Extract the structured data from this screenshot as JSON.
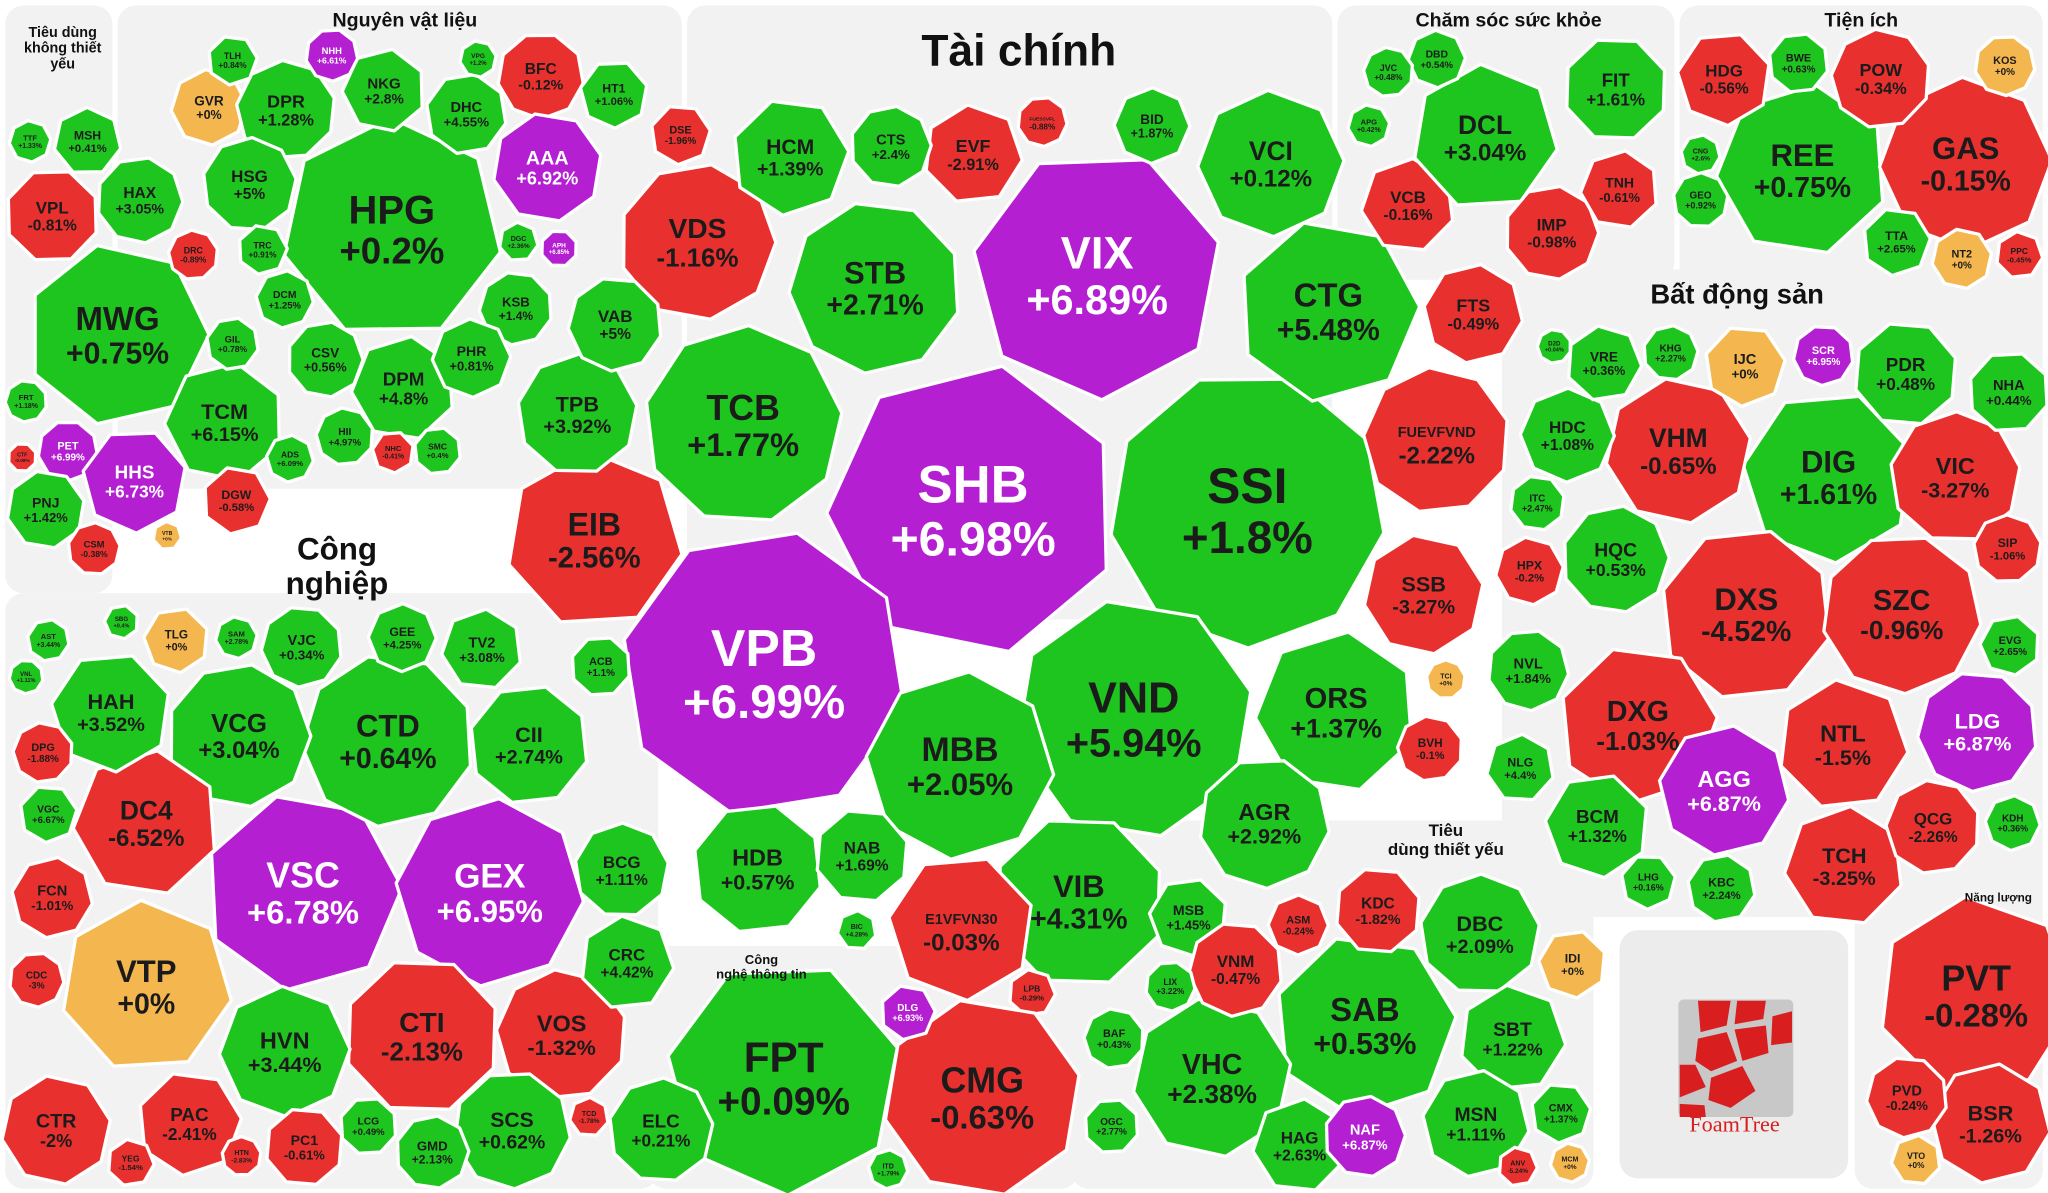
{
  "chart_data": {
    "type": "heatmap",
    "title": "",
    "colors": {
      "up": "#1fc51f",
      "down": "#e8312f",
      "ceiling": "#b41fd1",
      "unchanged": "#f4b74f"
    },
    "groups": [
      {
        "name": "Tiêu dùng không thiết yếu",
        "stocks": [
          {
            "ticker": "MWG",
            "change": "+0.75%"
          },
          {
            "ticker": "VPL",
            "change": "-0.81%"
          },
          {
            "ticker": "HAX",
            "change": "+3.05%"
          },
          {
            "ticker": "MSH",
            "change": "+0.41%"
          },
          {
            "ticker": "TTF",
            "change": "+1.33%"
          },
          {
            "ticker": "DRC",
            "change": "-0.89%"
          },
          {
            "ticker": "TCM",
            "change": "+6.15%"
          },
          {
            "ticker": "GIL",
            "change": "+0.78%"
          },
          {
            "ticker": "PET",
            "change": "+6.99%",
            "ceiling": true
          },
          {
            "ticker": "HHS",
            "change": "+6.73%",
            "ceiling": true
          },
          {
            "ticker": "PNJ",
            "change": "+1.42%"
          },
          {
            "ticker": "CSM",
            "change": "-0.38%"
          },
          {
            "ticker": "DGW",
            "change": "-0.58%"
          },
          {
            "ticker": "ADS",
            "change": "+6.09%"
          },
          {
            "ticker": "FRT",
            "change": "+1.18%"
          },
          {
            "ticker": "VTB",
            "change": "+0%"
          },
          {
            "ticker": "CTF",
            "change": "-0.08%"
          }
        ]
      },
      {
        "name": "Nguyên vật liệu",
        "stocks": [
          {
            "ticker": "HPG",
            "change": "+0.2%"
          },
          {
            "ticker": "GVR",
            "change": "+0%"
          },
          {
            "ticker": "DPR",
            "change": "+1.28%"
          },
          {
            "ticker": "NKG",
            "change": "+2.8%"
          },
          {
            "ticker": "DHC",
            "change": "+4.55%"
          },
          {
            "ticker": "BFC",
            "change": "-0.12%"
          },
          {
            "ticker": "HT1",
            "change": "+1.06%"
          },
          {
            "ticker": "AAA",
            "change": "+6.92%",
            "ceiling": true
          },
          {
            "ticker": "HSG",
            "change": "+5%"
          },
          {
            "ticker": "TRC",
            "change": "+0.91%"
          },
          {
            "ticker": "DCM",
            "change": "+1.25%"
          },
          {
            "ticker": "KSB",
            "change": "+1.4%"
          },
          {
            "ticker": "DGC",
            "change": "+2.36%"
          },
          {
            "ticker": "APH",
            "change": "+6.85%",
            "ceiling": true
          },
          {
            "ticker": "CSV",
            "change": "+0.56%"
          },
          {
            "ticker": "DPM",
            "change": "+4.8%"
          },
          {
            "ticker": "PHR",
            "change": "+0.81%"
          },
          {
            "ticker": "HII",
            "change": "+4.97%"
          },
          {
            "ticker": "NHC",
            "change": "-0.41%"
          },
          {
            "ticker": "SMC",
            "change": "+0.4%"
          },
          {
            "ticker": "NHH",
            "change": "+6.61%",
            "ceiling": true
          },
          {
            "ticker": "TLH",
            "change": "+0.84%"
          },
          {
            "ticker": "VPG",
            "change": "+1.2%"
          }
        ]
      },
      {
        "name": "Tài chính",
        "stocks": [
          {
            "ticker": "SHB",
            "change": "+6.98%",
            "ceiling": true
          },
          {
            "ticker": "VPB",
            "change": "+6.99%",
            "ceiling": true
          },
          {
            "ticker": "SSI",
            "change": "+1.8%"
          },
          {
            "ticker": "VIX",
            "change": "+6.89%",
            "ceiling": true
          },
          {
            "ticker": "VND",
            "change": "+5.94%"
          },
          {
            "ticker": "TCB",
            "change": "+1.77%"
          },
          {
            "ticker": "CTG",
            "change": "+5.48%"
          },
          {
            "ticker": "MBB",
            "change": "+2.05%"
          },
          {
            "ticker": "STB",
            "change": "+2.71%"
          },
          {
            "ticker": "EIB",
            "change": "-2.56%"
          },
          {
            "ticker": "VIB",
            "change": "+4.31%"
          },
          {
            "ticker": "VDS",
            "change": "-1.16%"
          },
          {
            "ticker": "ORS",
            "change": "+1.37%"
          },
          {
            "ticker": "VCI",
            "change": "+0.12%"
          },
          {
            "ticker": "FUEVFVND",
            "change": "-2.22%"
          },
          {
            "ticker": "E1VFVN30",
            "change": "-0.03%"
          },
          {
            "ticker": "HDB",
            "change": "+0.57%"
          },
          {
            "ticker": "AGR",
            "change": "+2.92%"
          },
          {
            "ticker": "HCM",
            "change": "+1.39%"
          },
          {
            "ticker": "SSB",
            "change": "-3.27%"
          },
          {
            "ticker": "TPB",
            "change": "+3.92%"
          },
          {
            "ticker": "EVF",
            "change": "-2.91%"
          },
          {
            "ticker": "FTS",
            "change": "-0.49%"
          },
          {
            "ticker": "VAB",
            "change": "+5%"
          },
          {
            "ticker": "VCB",
            "change": "-0.16%"
          },
          {
            "ticker": "NAB",
            "change": "+1.69%"
          },
          {
            "ticker": "CTS",
            "change": "+2.4%"
          },
          {
            "ticker": "MSB",
            "change": "+1.45%"
          },
          {
            "ticker": "BID",
            "change": "+1.87%"
          },
          {
            "ticker": "BVH",
            "change": "-0.1%"
          },
          {
            "ticker": "DSE",
            "change": "-1.96%"
          },
          {
            "ticker": "ACB",
            "change": "+1.1%"
          },
          {
            "ticker": "FUESSVFL",
            "change": "-0.88%"
          },
          {
            "ticker": "LPB",
            "change": "-0.29%"
          },
          {
            "ticker": "APG",
            "change": "+0.42%"
          },
          {
            "ticker": "TCI",
            "change": "+0%"
          },
          {
            "ticker": "BIC",
            "change": "+4.28%"
          }
        ]
      },
      {
        "name": "Công nghệ thông tin",
        "stocks": [
          {
            "ticker": "FPT",
            "change": "+0.09%"
          },
          {
            "ticker": "CMG",
            "change": "-0.63%"
          },
          {
            "ticker": "ELC",
            "change": "+0.21%"
          },
          {
            "ticker": "DLG",
            "change": "+6.93%",
            "ceiling": true
          },
          {
            "ticker": "ITD",
            "change": "+1.79%"
          }
        ]
      },
      {
        "name": "Công nghiệp",
        "stocks": [
          {
            "ticker": "VSC",
            "change": "+6.78%",
            "ceiling": true
          },
          {
            "ticker": "GEX",
            "change": "+6.95%",
            "ceiling": true
          },
          {
            "ticker": "CTD",
            "change": "+0.64%"
          },
          {
            "ticker": "VTP",
            "change": "+0%"
          },
          {
            "ticker": "CTI",
            "change": "-2.13%"
          },
          {
            "ticker": "VCG",
            "change": "+3.04%"
          },
          {
            "ticker": "DC4",
            "change": "-6.52%"
          },
          {
            "ticker": "HVN",
            "change": "+3.44%"
          },
          {
            "ticker": "VOS",
            "change": "-1.32%"
          },
          {
            "ticker": "HAH",
            "change": "+3.52%"
          },
          {
            "ticker": "CII",
            "change": "+2.74%"
          },
          {
            "ticker": "SCS",
            "change": "+0.62%"
          },
          {
            "ticker": "PAC",
            "change": "-2.41%"
          },
          {
            "ticker": "CTR",
            "change": "-2%"
          },
          {
            "ticker": "BCG",
            "change": "+1.11%"
          },
          {
            "ticker": "CRC",
            "change": "+4.42%"
          },
          {
            "ticker": "FCN",
            "change": "-1.01%"
          },
          {
            "ticker": "VJC",
            "change": "+0.34%"
          },
          {
            "ticker": "TV2",
            "change": "+3.08%"
          },
          {
            "ticker": "PC1",
            "change": "-0.61%"
          },
          {
            "ticker": "GMD",
            "change": "+2.13%"
          },
          {
            "ticker": "TLG",
            "change": "+0%"
          },
          {
            "ticker": "GEE",
            "change": "+4.25%"
          },
          {
            "ticker": "DPG",
            "change": "-1.88%"
          },
          {
            "ticker": "VGC",
            "change": "+6.67%"
          },
          {
            "ticker": "LCG",
            "change": "+0.49%"
          },
          {
            "ticker": "CDC",
            "change": "-3%"
          },
          {
            "ticker": "YEG",
            "change": "-1.54%"
          },
          {
            "ticker": "SAM",
            "change": "+2.78%"
          },
          {
            "ticker": "HTN",
            "change": "-2.83%"
          },
          {
            "ticker": "TCD",
            "change": "-1.78%"
          },
          {
            "ticker": "AST",
            "change": "+3.44%"
          },
          {
            "ticker": "VNL",
            "change": "+1.11%"
          },
          {
            "ticker": "SBG",
            "change": "+0.4%"
          }
        ]
      },
      {
        "name": "Chăm sóc sức khỏe",
        "stocks": [
          {
            "ticker": "DCL",
            "change": "+3.04%"
          },
          {
            "ticker": "FIT",
            "change": "+1.61%"
          },
          {
            "ticker": "IMP",
            "change": "-0.98%"
          },
          {
            "ticker": "TNH",
            "change": "-0.61%"
          },
          {
            "ticker": "DBD",
            "change": "+0.54%"
          },
          {
            "ticker": "JVC",
            "change": "+0.48%"
          }
        ]
      },
      {
        "name": "Tiện ích",
        "stocks": [
          {
            "ticker": "REE",
            "change": "+0.75%"
          },
          {
            "ticker": "GAS",
            "change": "-0.15%"
          },
          {
            "ticker": "POW",
            "change": "-0.34%"
          },
          {
            "ticker": "HDG",
            "change": "-0.56%"
          },
          {
            "ticker": "BWE",
            "change": "+0.63%"
          },
          {
            "ticker": "KOS",
            "change": "+0%"
          },
          {
            "ticker": "TTA",
            "change": "+2.65%"
          },
          {
            "ticker": "NT2",
            "change": "+0%"
          },
          {
            "ticker": "GEO",
            "change": "+0.92%"
          },
          {
            "ticker": "PPC",
            "change": "-0.45%"
          },
          {
            "ticker": "CNG",
            "change": "+2.6%"
          }
        ]
      },
      {
        "name": "Bất động sản",
        "stocks": [
          {
            "ticker": "DIG",
            "change": "+1.61%"
          },
          {
            "ticker": "DXS",
            "change": "-4.52%"
          },
          {
            "ticker": "SZC",
            "change": "-0.96%"
          },
          {
            "ticker": "DXG",
            "change": "-1.03%"
          },
          {
            "ticker": "VHM",
            "change": "-0.65%"
          },
          {
            "ticker": "VIC",
            "change": "-3.27%"
          },
          {
            "ticker": "NTL",
            "change": "-1.5%"
          },
          {
            "ticker": "AGG",
            "change": "+6.87%",
            "ceiling": true
          },
          {
            "ticker": "LDG",
            "change": "+6.87%",
            "ceiling": true
          },
          {
            "ticker": "TCH",
            "change": "-3.25%"
          },
          {
            "ticker": "PDR",
            "change": "+0.48%"
          },
          {
            "ticker": "HQC",
            "change": "+0.53%"
          },
          {
            "ticker": "BCM",
            "change": "+1.32%"
          },
          {
            "ticker": "HDC",
            "change": "+1.08%"
          },
          {
            "ticker": "QCG",
            "change": "-2.26%"
          },
          {
            "ticker": "IJC",
            "change": "+0%"
          },
          {
            "ticker": "NHA",
            "change": "+0.44%"
          },
          {
            "ticker": "NVL",
            "change": "+1.84%"
          },
          {
            "ticker": "VRE",
            "change": "+0.36%"
          },
          {
            "ticker": "HPX",
            "change": "-0.2%"
          },
          {
            "ticker": "SIP",
            "change": "-1.06%"
          },
          {
            "ticker": "NLG",
            "change": "+4.4%"
          },
          {
            "ticker": "KBC",
            "change": "+2.24%"
          },
          {
            "ticker": "SCR",
            "change": "+6.95%",
            "ceiling": true
          },
          {
            "ticker": "EVG",
            "change": "+2.65%"
          },
          {
            "ticker": "ITC",
            "change": "+2.47%"
          },
          {
            "ticker": "KHG",
            "change": "+2.27%"
          },
          {
            "ticker": "LHG",
            "change": "+0.16%"
          },
          {
            "ticker": "KDH",
            "change": "+0.36%"
          },
          {
            "ticker": "D2D",
            "change": "+0.04%"
          }
        ]
      },
      {
        "name": "Tiêu dùng thiết yếu",
        "stocks": [
          {
            "ticker": "SAB",
            "change": "+0.53%"
          },
          {
            "ticker": "VHC",
            "change": "+2.38%"
          },
          {
            "ticker": "DBC",
            "change": "+2.09%"
          },
          {
            "ticker": "SBT",
            "change": "+1.22%"
          },
          {
            "ticker": "MSN",
            "change": "+1.11%"
          },
          {
            "ticker": "VNM",
            "change": "-0.47%"
          },
          {
            "ticker": "HAG",
            "change": "+2.63%"
          },
          {
            "ticker": "KDC",
            "change": "-1.82%"
          },
          {
            "ticker": "NAF",
            "change": "+6.87%",
            "ceiling": true
          },
          {
            "ticker": "IDI",
            "change": "+0%"
          },
          {
            "ticker": "ASM",
            "change": "-0.24%"
          },
          {
            "ticker": "BAF",
            "change": "+0.43%"
          },
          {
            "ticker": "CMX",
            "change": "+1.37%"
          },
          {
            "ticker": "OGC",
            "change": "+2.77%"
          },
          {
            "ticker": "LIX",
            "change": "+3.22%"
          },
          {
            "ticker": "ANV",
            "change": "-5.24%"
          },
          {
            "ticker": "MCM",
            "change": "+0%"
          }
        ]
      },
      {
        "name": "Năng lượng",
        "stocks": [
          {
            "ticker": "PVT",
            "change": "-0.28%"
          },
          {
            "ticker": "BSR",
            "change": "-1.26%"
          },
          {
            "ticker": "PVD",
            "change": "-0.24%"
          },
          {
            "ticker": "VTO",
            "change": "+0%"
          }
        ]
      }
    ],
    "logo": {
      "text": "FoamTree"
    }
  }
}
